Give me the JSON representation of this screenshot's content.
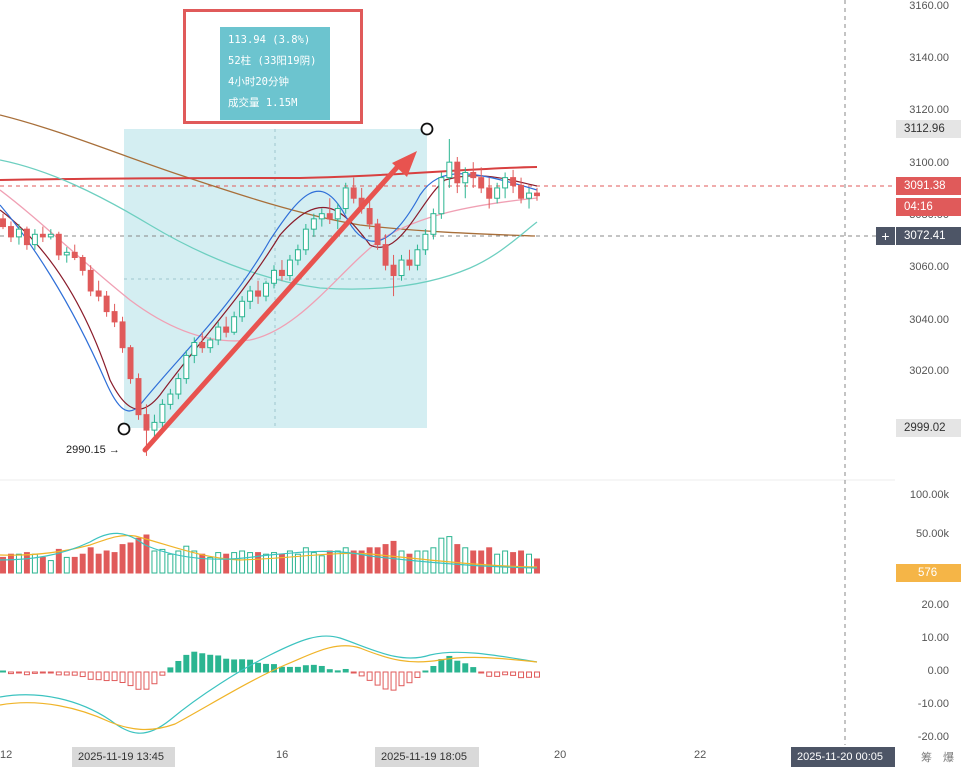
{
  "info_box": {
    "change": "113.94 (3.8%)",
    "bars": "52柱 (33阳19阴)",
    "duration": "4小时20分钟",
    "volume": "成交量 1.15M"
  },
  "low_label": "2990.15",
  "low_arrow": "→",
  "price_axis": [
    "3160.00",
    "3140.00",
    "3120.00",
    "3100.00",
    "3080.00",
    "3060.00",
    "3040.00",
    "3020.00"
  ],
  "price_tags": {
    "high": "3112.96",
    "current": "3091.38",
    "countdown": "04:16",
    "crosshair": "3072.41",
    "low": "2999.02"
  },
  "plus_symbol": "+",
  "volume_axis": [
    "100.00k",
    "50.00k"
  ],
  "volume_tag": "576",
  "macd_axis": [
    "20.00",
    "10.00",
    "0.00",
    "-10.00",
    "-20.00"
  ],
  "time_axis": {
    "left_cut": "12",
    "box_start": "2025-11-19 13:45",
    "mid": "16",
    "box_end": "2025-11-19 18:05",
    "day20": "20",
    "day22": "22",
    "crosshair_time": "2025-11-20 00:05",
    "tail1": "筹",
    "tail2": "爆"
  },
  "colors": {
    "up": "#2bb591",
    "down": "#e05a5a",
    "range_fill": "#cdebf0",
    "arrow": "#e8534f"
  },
  "chart_data": {
    "type": "candlestick",
    "price_ylim": [
      2995,
      3165
    ],
    "range_measure": {
      "start_price": 2999.02,
      "end_price": 3112.96,
      "change": 113.94,
      "percent": 3.8,
      "bars": 52,
      "up_bars": 33,
      "down_bars": 19
    },
    "candles": [
      [
        3082,
        3084,
        3078,
        3079
      ],
      [
        3079,
        3081,
        3073,
        3075
      ],
      [
        3075,
        3080,
        3072,
        3078
      ],
      [
        3078,
        3079,
        3070,
        3072
      ],
      [
        3072,
        3078,
        3070,
        3076
      ],
      [
        3076,
        3079,
        3073,
        3075
      ],
      [
        3075,
        3078,
        3074,
        3076
      ],
      [
        3076,
        3077,
        3066,
        3068
      ],
      [
        3068,
        3071,
        3065,
        3069
      ],
      [
        3069,
        3072,
        3066,
        3067
      ],
      [
        3067,
        3068,
        3060,
        3062
      ],
      [
        3062,
        3064,
        3052,
        3054
      ],
      [
        3054,
        3058,
        3050,
        3052
      ],
      [
        3052,
        3054,
        3044,
        3046
      ],
      [
        3046,
        3049,
        3040,
        3042
      ],
      [
        3042,
        3044,
        3030,
        3032
      ],
      [
        3032,
        3033,
        3018,
        3020
      ],
      [
        3020,
        3022,
        3004,
        3006
      ],
      [
        3006,
        3010,
        2990,
        3000
      ],
      [
        3000,
        3006,
        2996,
        3003
      ],
      [
        3003,
        3012,
        3001,
        3010
      ],
      [
        3010,
        3016,
        3008,
        3014
      ],
      [
        3014,
        3022,
        3012,
        3020
      ],
      [
        3020,
        3031,
        3018,
        3029
      ],
      [
        3029,
        3036,
        3026,
        3034
      ],
      [
        3034,
        3038,
        3030,
        3032
      ],
      [
        3032,
        3036,
        3030,
        3035
      ],
      [
        3035,
        3042,
        3033,
        3040
      ],
      [
        3040,
        3044,
        3036,
        3038
      ],
      [
        3038,
        3046,
        3037,
        3044
      ],
      [
        3044,
        3052,
        3042,
        3050
      ],
      [
        3050,
        3056,
        3047,
        3054
      ],
      [
        3054,
        3058,
        3049,
        3052
      ],
      [
        3052,
        3058,
        3050,
        3057
      ],
      [
        3057,
        3064,
        3055,
        3062
      ],
      [
        3062,
        3066,
        3058,
        3060
      ],
      [
        3060,
        3068,
        3058,
        3066
      ],
      [
        3066,
        3072,
        3064,
        3070
      ],
      [
        3070,
        3080,
        3068,
        3078
      ],
      [
        3078,
        3084,
        3075,
        3082
      ],
      [
        3082,
        3086,
        3079,
        3084
      ],
      [
        3084,
        3090,
        3080,
        3082
      ],
      [
        3082,
        3088,
        3078,
        3086
      ],
      [
        3086,
        3096,
        3084,
        3094
      ],
      [
        3094,
        3098,
        3088,
        3090
      ],
      [
        3090,
        3094,
        3084,
        3086
      ],
      [
        3086,
        3090,
        3078,
        3080
      ],
      [
        3080,
        3082,
        3070,
        3072
      ],
      [
        3072,
        3076,
        3062,
        3064
      ],
      [
        3064,
        3068,
        3052,
        3060
      ],
      [
        3060,
        3068,
        3058,
        3066
      ],
      [
        3066,
        3070,
        3062,
        3064
      ],
      [
        3064,
        3072,
        3062,
        3070
      ],
      [
        3070,
        3078,
        3068,
        3076
      ],
      [
        3076,
        3086,
        3074,
        3084
      ],
      [
        3084,
        3100,
        3082,
        3098
      ],
      [
        3098,
        3113,
        3094,
        3104
      ],
      [
        3104,
        3106,
        3092,
        3096
      ],
      [
        3096,
        3102,
        3090,
        3100
      ],
      [
        3100,
        3104,
        3094,
        3098
      ],
      [
        3098,
        3102,
        3092,
        3094
      ],
      [
        3094,
        3098,
        3086,
        3090
      ],
      [
        3090,
        3096,
        3088,
        3094
      ],
      [
        3094,
        3100,
        3090,
        3098
      ],
      [
        3098,
        3101,
        3092,
        3095
      ],
      [
        3095,
        3098,
        3088,
        3090
      ],
      [
        3090,
        3094,
        3086,
        3092
      ],
      [
        3092,
        3094,
        3089,
        3091
      ]
    ],
    "volume_ylim": [
      0,
      100000
    ],
    "macd_ylim": [
      -20,
      20
    ]
  }
}
